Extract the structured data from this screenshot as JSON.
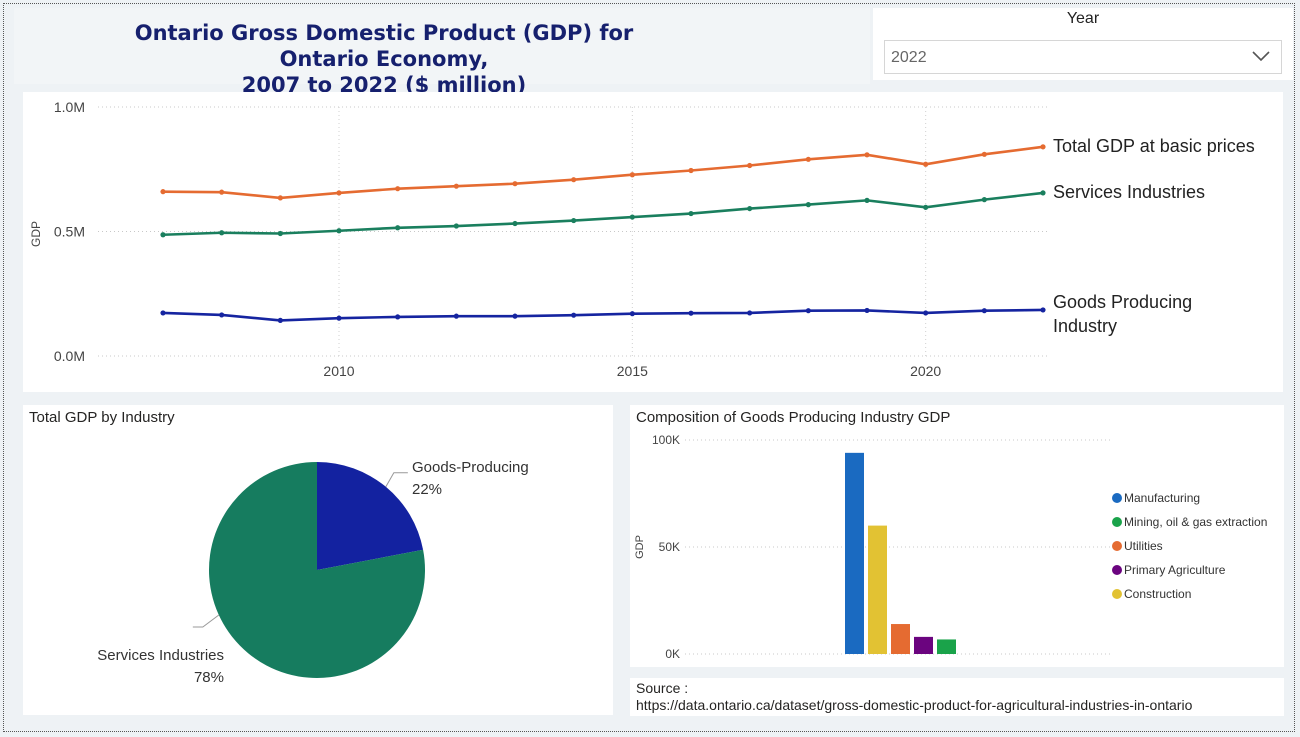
{
  "header": {
    "title_line1": "Ontario Gross Domestic Product (GDP) for Ontario Economy,",
    "title_line2": "2007 to 2022 ($ million)"
  },
  "filter": {
    "label": "Year",
    "selected": "2022"
  },
  "colors": {
    "total": "#e56b31",
    "services": "#1a7f5e",
    "goods": "#1524a0",
    "pie_services": "#167c5f",
    "pie_goods": "#1322a0"
  },
  "source": {
    "label": "Source :",
    "url": "https://data.ontario.ca/dataset/gross-domestic-product-for-agricultural-industries-in-ontario"
  },
  "chart_data": [
    {
      "type": "line",
      "ylabel": "GDP",
      "ylim": [
        0,
        1000000
      ],
      "y_ticks": [
        {
          "value": 0,
          "label": "0.0M"
        },
        {
          "value": 500000,
          "label": "0.5M"
        },
        {
          "value": 1000000,
          "label": "1.0M"
        }
      ],
      "x_ticks": [
        2010,
        2015,
        2020
      ],
      "xlim": [
        2007,
        2022
      ],
      "grid": true,
      "x": [
        2007,
        2008,
        2009,
        2010,
        2011,
        2012,
        2013,
        2014,
        2015,
        2016,
        2017,
        2018,
        2019,
        2020,
        2021,
        2022
      ],
      "series": [
        {
          "name": "Total GDP at basic prices",
          "color_key": "total",
          "values": [
            660000,
            658000,
            635000,
            655000,
            672000,
            682000,
            692000,
            708000,
            728000,
            745000,
            765000,
            790000,
            808000,
            770000,
            810000,
            840000
          ]
        },
        {
          "name": "Services Industries",
          "color_key": "services",
          "values": [
            487000,
            495000,
            492000,
            503000,
            515000,
            522000,
            532000,
            544000,
            558000,
            572000,
            592000,
            608000,
            625000,
            597000,
            628000,
            655000
          ]
        },
        {
          "name": "Goods Producing Industry",
          "color_key": "goods",
          "values": [
            173000,
            165000,
            143000,
            152000,
            157000,
            160000,
            160000,
            164000,
            170000,
            172000,
            173000,
            182000,
            183000,
            173000,
            182000,
            185000
          ]
        }
      ]
    },
    {
      "type": "pie",
      "title": "Total GDP by Industry",
      "slices": [
        {
          "name": "Goods-Producing",
          "value": 22,
          "label": "22%",
          "color_key": "pie_goods"
        },
        {
          "name": "Services Industries",
          "value": 78,
          "label": "78%",
          "color_key": "pie_services"
        }
      ]
    },
    {
      "type": "bar",
      "title": "Composition of Goods Producing Industry GDP",
      "ylabel": "GDP",
      "ylim": [
        0,
        100000
      ],
      "y_ticks": [
        {
          "value": 0,
          "label": "0K"
        },
        {
          "value": 50000,
          "label": "50K"
        },
        {
          "value": 100000,
          "label": "100K"
        }
      ],
      "legend_position": "right",
      "bars": [
        {
          "name": "Manufacturing",
          "value": 94000,
          "color": "#1a6ac1"
        },
        {
          "name": "Construction",
          "value": 60000,
          "color": "#e2c233"
        },
        {
          "name": "Utilities",
          "value": 14000,
          "color": "#e56b31"
        },
        {
          "name": "Primary Agriculture",
          "value": 8000,
          "color": "#6b047f"
        },
        {
          "name": "Mining, oil & gas extraction",
          "value": 6800,
          "color": "#1aa34a"
        }
      ],
      "legend": [
        {
          "name": "Manufacturing",
          "color": "#1a6ac1"
        },
        {
          "name": "Mining, oil & gas extraction",
          "color": "#1aa34a"
        },
        {
          "name": "Utilities",
          "color": "#e56b31"
        },
        {
          "name": "Primary Agriculture",
          "color": "#6b047f"
        },
        {
          "name": "Construction",
          "color": "#e2c233"
        }
      ]
    }
  ]
}
